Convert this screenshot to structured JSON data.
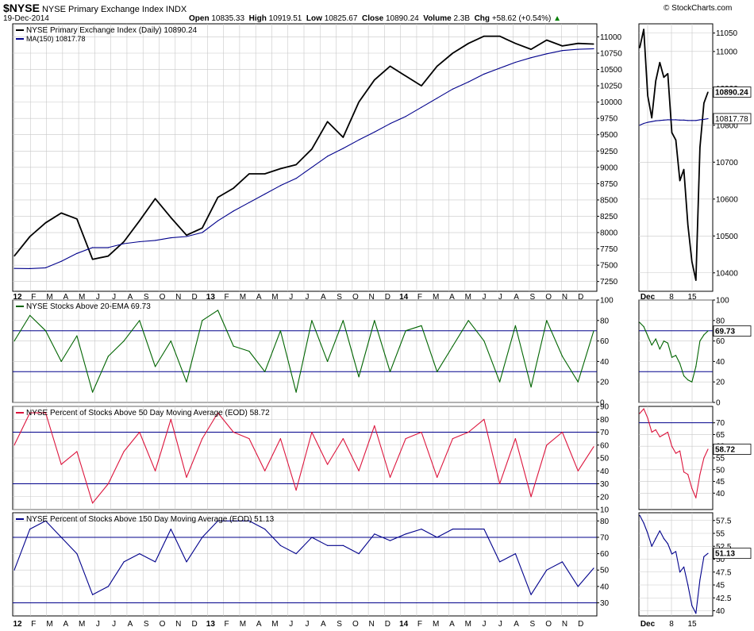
{
  "header": {
    "symbol": "$NYSE",
    "name": "NYSE Primary Exchange Index",
    "exchange": "INDX",
    "date": "19-Dec-2014",
    "watermark": "© StockCharts.com",
    "open_label": "Open",
    "open": "10835.33",
    "high_label": "High",
    "high": "10919.51",
    "low_label": "Low",
    "low": "10825.67",
    "close_label": "Close",
    "close": "10890.24",
    "volume_label": "Volume",
    "volume": "2.3B",
    "chg_label": "Chg",
    "chg": "+58.62 (+0.54%)"
  },
  "colors": {
    "price": "#000000",
    "ma": "#00008b",
    "ema20": "#006400",
    "dma50": "#dc143c",
    "dma150": "#00008b",
    "grid": "#c8c8c8"
  },
  "chart_data": [
    {
      "id": "price",
      "type": "line",
      "legend": [
        "NYSE Primary Exchange Index (Daily) 10890.24",
        "MA(150) 10817.78"
      ],
      "x_labels": [
        "12",
        "F",
        "M",
        "A",
        "M",
        "J",
        "J",
        "A",
        "S",
        "O",
        "N",
        "D",
        "13",
        "F",
        "M",
        "A",
        "M",
        "J",
        "J",
        "A",
        "S",
        "O",
        "N",
        "D",
        "14",
        "F",
        "M",
        "A",
        "M",
        "J",
        "J",
        "A",
        "S",
        "O",
        "N",
        "D"
      ],
      "ylim": [
        7100,
        11200
      ],
      "y_ticks": [
        7250,
        7500,
        7750,
        8000,
        8250,
        8500,
        8750,
        9000,
        9250,
        9500,
        9750,
        10000,
        10250,
        10500,
        10750,
        11000
      ],
      "series": [
        {
          "name": "NYSE Primary Exchange Index",
          "color": "#000000",
          "values": [
            7640,
            7940,
            8150,
            8300,
            8210,
            7590,
            7640,
            7860,
            8180,
            8520,
            8230,
            7960,
            8070,
            8540,
            8680,
            8900,
            8900,
            8980,
            9040,
            9280,
            9700,
            9460,
            10000,
            10340,
            10550,
            10400,
            10250,
            10550,
            10750,
            10900,
            11010,
            11010,
            10900,
            10810,
            10950,
            10860,
            10900,
            10890
          ]
        },
        {
          "name": "MA(150)",
          "color": "#00008b",
          "values": [
            7450,
            7448,
            7460,
            7560,
            7680,
            7770,
            7770,
            7830,
            7860,
            7880,
            7920,
            7940,
            8000,
            8180,
            8330,
            8460,
            8590,
            8720,
            8830,
            9000,
            9170,
            9290,
            9420,
            9540,
            9670,
            9780,
            9920,
            10060,
            10200,
            10310,
            10430,
            10520,
            10610,
            10680,
            10740,
            10790,
            10810,
            10818
          ]
        }
      ]
    },
    {
      "id": "price_zoom",
      "type": "line",
      "x_labels": [
        "Dec",
        "8",
        "15"
      ],
      "ylim": [
        10350,
        11075
      ],
      "y_ticks": [
        10400,
        10500,
        10600,
        10700,
        10800,
        10900,
        11000,
        11050
      ],
      "value_tags": [
        "10890.24",
        "10817.78"
      ],
      "series": [
        {
          "name": "NYSE Primary Exchange Index",
          "color": "#000000",
          "values": [
            11010,
            11060,
            10880,
            10820,
            10920,
            10970,
            10930,
            10940,
            10780,
            10760,
            10650,
            10680,
            10530,
            10430,
            10380,
            10740,
            10860,
            10890
          ]
        },
        {
          "name": "MA(150)",
          "color": "#00008b",
          "values": [
            10800,
            10805,
            10808,
            10810,
            10812,
            10813,
            10814,
            10815,
            10815,
            10815,
            10814,
            10814,
            10813,
            10813,
            10813,
            10815,
            10816,
            10818
          ]
        }
      ]
    },
    {
      "id": "ema20",
      "type": "line",
      "legend": [
        "NYSE Stocks Above 20-EMA 69.73"
      ],
      "ylim": [
        0,
        100
      ],
      "y_ticks": [
        0,
        20,
        40,
        60,
        80,
        100
      ],
      "hlines": [
        30,
        70
      ],
      "series": [
        {
          "name": "NYSE Stocks Above 20-EMA",
          "color": "#006400",
          "values": [
            60,
            85,
            70,
            40,
            65,
            10,
            45,
            60,
            80,
            35,
            60,
            20,
            80,
            90,
            55,
            50,
            30,
            70,
            10,
            80,
            40,
            80,
            25,
            80,
            30,
            70,
            75,
            30,
            55,
            80,
            60,
            20,
            75,
            15,
            80,
            45,
            20,
            69.73
          ]
        }
      ]
    },
    {
      "id": "ema20_zoom",
      "type": "line",
      "ylim": [
        0,
        100
      ],
      "y_ticks": [
        0,
        20,
        40,
        60,
        80,
        100
      ],
      "hlines": [
        30,
        70
      ],
      "value_tags": [
        "69.73"
      ],
      "series": [
        {
          "name": "NYSE Stocks Above 20-EMA",
          "color": "#006400",
          "values": [
            78,
            74,
            65,
            56,
            62,
            52,
            60,
            58,
            44,
            46,
            38,
            26,
            22,
            20,
            35,
            60,
            66,
            69.73
          ]
        }
      ]
    },
    {
      "id": "dma50",
      "type": "line",
      "legend": [
        "NYSE Percent of Stocks Above 50 Day Moving Average (EOD) 58.72"
      ],
      "ylim": [
        10,
        90
      ],
      "y_ticks": [
        10,
        20,
        30,
        40,
        50,
        60,
        70,
        80,
        90
      ],
      "hlines": [
        30,
        70
      ],
      "series": [
        {
          "name": "NYSE Percent of Stocks Above 50 Day MA",
          "color": "#dc143c",
          "values": [
            60,
            85,
            85,
            45,
            55,
            15,
            30,
            55,
            70,
            40,
            80,
            35,
            65,
            85,
            70,
            65,
            40,
            65,
            25,
            70,
            45,
            65,
            40,
            75,
            35,
            65,
            70,
            35,
            65,
            70,
            80,
            30,
            65,
            20,
            60,
            70,
            40,
            58.72
          ]
        }
      ]
    },
    {
      "id": "dma50_zoom",
      "type": "line",
      "ylim": [
        33,
        77
      ],
      "y_ticks": [
        40,
        45,
        50,
        55,
        60,
        65,
        70
      ],
      "hlines": [
        70
      ],
      "value_tags": [
        "58.72"
      ],
      "series": [
        {
          "name": "NYSE Percent of Stocks Above 50 Day MA",
          "color": "#dc143c",
          "values": [
            74,
            76,
            72,
            66,
            67,
            64,
            65,
            66,
            60,
            57,
            58,
            49,
            48,
            42,
            38,
            48,
            55,
            58.72
          ]
        }
      ]
    },
    {
      "id": "dma150",
      "type": "line",
      "legend": [
        "NYSE Percent of Stocks Above 150 Day Moving Average (EOD) 51.13"
      ],
      "ylim": [
        22,
        85
      ],
      "y_ticks": [
        30,
        40,
        50,
        60,
        70,
        80
      ],
      "hlines": [
        30,
        70
      ],
      "series": [
        {
          "name": "NYSE Percent of Stocks Above 150 Day MA",
          "color": "#00008b",
          "values": [
            50,
            75,
            80,
            70,
            60,
            35,
            40,
            55,
            60,
            55,
            75,
            55,
            70,
            80,
            80,
            80,
            75,
            65,
            60,
            70,
            65,
            65,
            60,
            72,
            68,
            72,
            75,
            70,
            75,
            75,
            75,
            55,
            60,
            35,
            50,
            55,
            40,
            51.13
          ]
        }
      ]
    },
    {
      "id": "dma150_zoom",
      "type": "line",
      "ylim": [
        39,
        59
      ],
      "y_ticks": [
        40,
        42.5,
        45,
        47.5,
        50,
        52.5,
        55,
        57.5
      ],
      "value_tags": [
        "51.13"
      ],
      "series": [
        {
          "name": "NYSE Percent of Stocks Above 150 Day MA",
          "color": "#00008b",
          "values": [
            58.5,
            57,
            55,
            52.5,
            54,
            55.5,
            54,
            53,
            51,
            51.5,
            47.5,
            48.5,
            45,
            41,
            39.5,
            46,
            50.5,
            51.13
          ]
        }
      ]
    }
  ]
}
